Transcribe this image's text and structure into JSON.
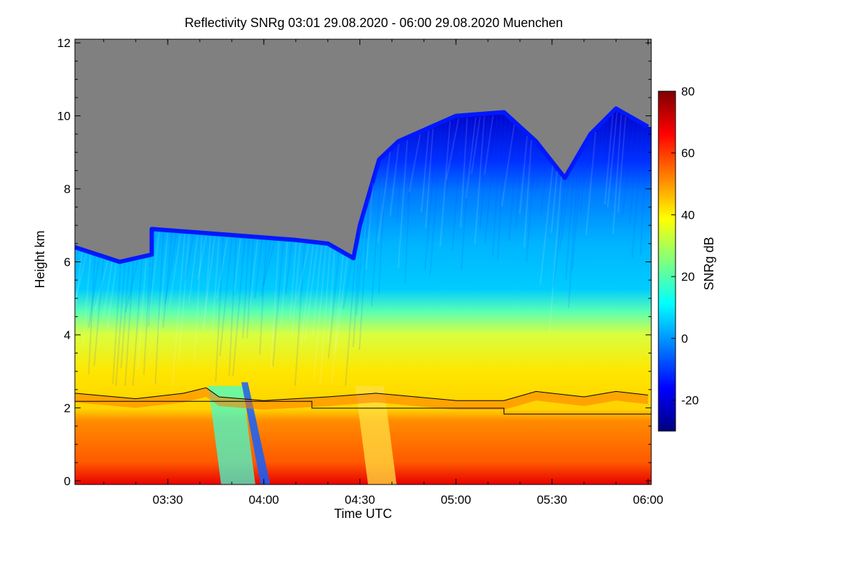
{
  "title": "Reflectivity SNRg   03:01 29.08.2020 - 06:00 29.08.2020 Muenchen",
  "colors": {
    "no_data": "#808080",
    "colormap": [
      "#00007f",
      "#0000ff",
      "#007fff",
      "#00ffff",
      "#7fff7f",
      "#ffff00",
      "#ff7f00",
      "#ff0000",
      "#7f0000"
    ]
  },
  "chart_data": {
    "type": "heatmap",
    "title": "Reflectivity SNRg   03:01 29.08.2020 - 06:00 29.08.2020 Muenchen",
    "xlabel": "Time UTC",
    "ylabel": "Height km",
    "xlim": [
      "03:01",
      "06:01"
    ],
    "x_ticks": [
      "03:30",
      "04:00",
      "04:30",
      "05:00",
      "05:30",
      "06:00"
    ],
    "ylim": [
      -0.1,
      12.1
    ],
    "y_ticks": [
      "0",
      "2",
      "4",
      "6",
      "8",
      "10",
      "12"
    ],
    "colorbar": {
      "label": "SNRg dB",
      "range": [
        -30,
        80
      ],
      "ticks": [
        "-20",
        "0",
        "20",
        "40",
        "60",
        "80"
      ]
    },
    "cloud_top_km": [
      {
        "time": "03:01",
        "top": 6.4
      },
      {
        "time": "03:15",
        "top": 6.0
      },
      {
        "time": "03:25",
        "top": 6.2
      },
      {
        "time": "03:25",
        "top": 6.9
      },
      {
        "time": "04:10",
        "top": 6.6
      },
      {
        "time": "04:20",
        "top": 6.5
      },
      {
        "time": "04:28",
        "top": 6.1
      },
      {
        "time": "04:30",
        "top": 7.0
      },
      {
        "time": "04:36",
        "top": 8.8
      },
      {
        "time": "04:42",
        "top": 9.3
      },
      {
        "time": "05:00",
        "top": 10.0
      },
      {
        "time": "05:15",
        "top": 10.1
      },
      {
        "time": "05:25",
        "top": 9.3
      },
      {
        "time": "05:34",
        "top": 8.3
      },
      {
        "time": "05:42",
        "top": 9.5
      },
      {
        "time": "05:50",
        "top": 10.2
      },
      {
        "time": "06:00",
        "top": 9.7
      }
    ],
    "melting_layer_km": [
      {
        "time": "03:01",
        "value": 2.4
      },
      {
        "time": "03:20",
        "value": 2.25
      },
      {
        "time": "03:35",
        "value": 2.4
      },
      {
        "time": "03:42",
        "value": 2.55
      },
      {
        "time": "03:46",
        "value": 2.3
      },
      {
        "time": "04:00",
        "value": 2.2
      },
      {
        "time": "04:20",
        "value": 2.3
      },
      {
        "time": "04:35",
        "value": 2.4
      },
      {
        "time": "05:00",
        "value": 2.2
      },
      {
        "time": "05:15",
        "value": 2.2
      },
      {
        "time": "05:25",
        "value": 2.45
      },
      {
        "time": "05:40",
        "value": 2.3
      },
      {
        "time": "05:50",
        "value": 2.45
      },
      {
        "time": "06:00",
        "value": 2.35
      }
    ],
    "step_line_km": [
      {
        "time": "03:01",
        "value": 2.18
      },
      {
        "time": "04:15",
        "value": 2.18
      },
      {
        "time": "04:15",
        "value": 1.99
      },
      {
        "time": "05:15",
        "value": 1.99
      },
      {
        "time": "05:15",
        "value": 1.83
      },
      {
        "time": "06:01",
        "value": 1.83
      }
    ]
  }
}
